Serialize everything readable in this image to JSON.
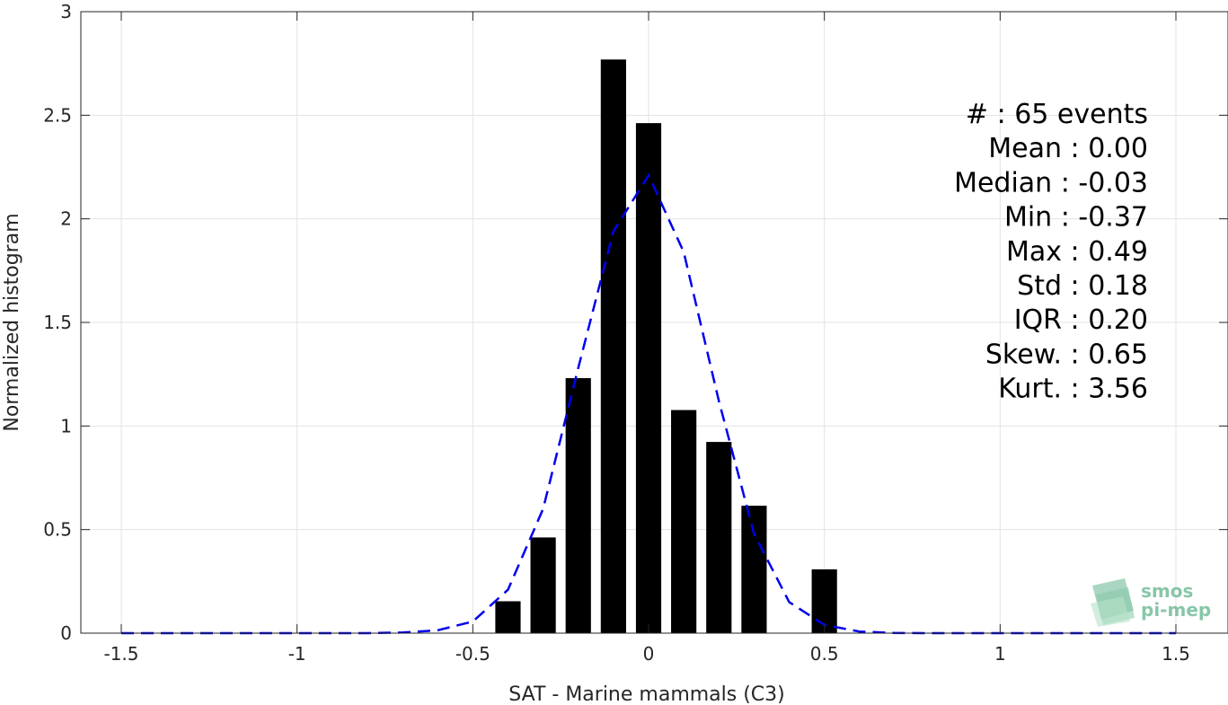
{
  "chart_data": {
    "type": "bar",
    "xlabel": "SAT - Marine mammals (C3)",
    "ylabel": "Normalized histogram",
    "xlim": [
      -1.5,
      1.5
    ],
    "ylim": [
      0,
      3
    ],
    "grid": true,
    "xticks": [
      "-1.5",
      "-1",
      "-0.5",
      "0",
      "0.5",
      "1",
      "1.5"
    ],
    "yticks": [
      "0",
      "0.5",
      "1",
      "1.5",
      "2",
      "2.5",
      "3"
    ],
    "bars": {
      "color": "#000000",
      "bin_width": 0.1,
      "x": [
        -0.4,
        -0.3,
        -0.2,
        -0.1,
        0.0,
        0.1,
        0.2,
        0.3,
        0.5
      ],
      "values": [
        0.154,
        0.462,
        1.231,
        2.769,
        2.462,
        1.077,
        0.923,
        0.615,
        0.308
      ]
    },
    "fit_curve": {
      "style": "dashed",
      "color": "#0000ee",
      "x": [
        -1.5,
        -1.4,
        -1.3,
        -1.2,
        -1.1,
        -1.0,
        -0.9,
        -0.8,
        -0.7,
        -0.6,
        -0.5,
        -0.4,
        -0.3,
        -0.2,
        -0.1,
        0.0,
        0.1,
        0.2,
        0.3,
        0.4,
        0.5,
        0.6,
        0.7,
        0.8,
        0.9,
        1.0,
        1.1,
        1.2,
        1.3,
        1.4,
        1.5
      ],
      "y": [
        0,
        0,
        0,
        0,
        0,
        0,
        0,
        0,
        0.003,
        0.014,
        0.056,
        0.21,
        0.6,
        1.28,
        1.94,
        2.21,
        1.84,
        1.12,
        0.48,
        0.15,
        0.04,
        0.008,
        0.001,
        0,
        0,
        0,
        0,
        0,
        0,
        0,
        0
      ]
    },
    "stats": [
      "#  : 65 events",
      "Mean : 0.00",
      "Median : -0.03",
      "Min : -0.37",
      "Max : 0.49",
      "Std : 0.18",
      "IQR : 0.20",
      "Skew. : 0.65",
      "Kurt. : 3.56"
    ]
  },
  "logo": {
    "line1": "smos",
    "line2": "pi-mep",
    "color": "#5fb48a"
  }
}
